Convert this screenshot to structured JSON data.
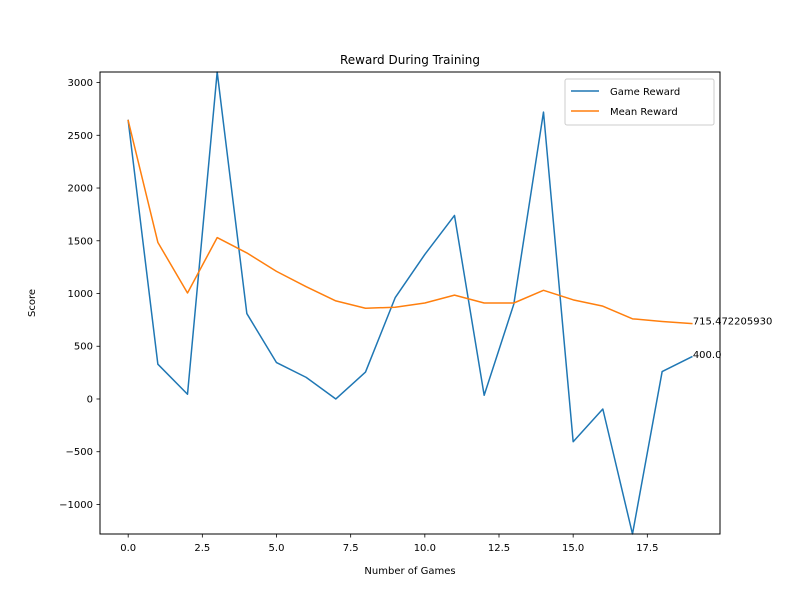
{
  "chart_data": {
    "type": "line",
    "title": "Reward During Training",
    "xlabel": "Number of Games",
    "ylabel": "Score",
    "xlim": [
      -0.95,
      19.95
    ],
    "ylim": [
      -1280,
      3100
    ],
    "x_ticks": [
      0.0,
      2.5,
      5.0,
      7.5,
      10.0,
      12.5,
      15.0,
      17.5
    ],
    "x_tick_labels": [
      "0.0",
      "2.5",
      "5.0",
      "7.5",
      "10.0",
      "12.5",
      "15.0",
      "17.5"
    ],
    "y_ticks": [
      -1000,
      -500,
      0,
      500,
      1000,
      1500,
      2000,
      2500,
      3000
    ],
    "y_tick_labels": [
      "−1000",
      "−500",
      "0",
      "500",
      "1000",
      "1500",
      "2000",
      "2500",
      "3000"
    ],
    "grid": false,
    "legend_position": "top-right",
    "x": [
      0,
      1,
      2,
      3,
      4,
      5,
      6,
      7,
      8,
      9,
      10,
      11,
      12,
      13,
      14,
      15,
      16,
      17,
      18,
      19
    ],
    "series": [
      {
        "name": "Game Reward",
        "color": "#1f77b4",
        "values": [
          2640,
          330,
          45,
          3100,
          810,
          345,
          205,
          0,
          255,
          960,
          1370,
          1740,
          35,
          900,
          2720,
          -405,
          -95,
          -1280,
          260,
          400.0
        ],
        "end_label": "400.0"
      },
      {
        "name": "Mean Reward",
        "color": "#ff7f0e",
        "values": [
          2640,
          1485,
          1005,
          1530,
          1385,
          1210,
          1065,
          930,
          860,
          870,
          910,
          985,
          910,
          910,
          1030,
          940,
          880,
          760,
          735,
          715.4722
        ],
        "end_label": "715.472205930"
      }
    ]
  }
}
